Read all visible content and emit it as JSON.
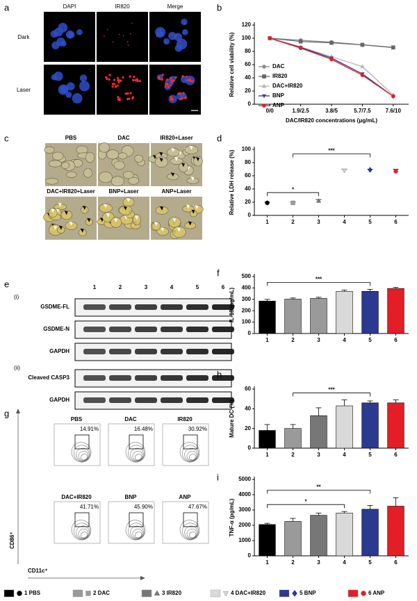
{
  "microscopy": {
    "label": "a",
    "columns": [
      "DAPI",
      "IR820",
      "Merge"
    ],
    "rows": [
      "Dark",
      "Laser"
    ]
  },
  "brightfield": {
    "label": "c",
    "images": [
      "PBS",
      "DAC",
      "IR820+Laser",
      "DAC+IR820+Laser",
      "BNP+Laser",
      "ANP+Laser"
    ]
  },
  "western_blot": {
    "label": "e",
    "lanes": [
      "1",
      "2",
      "3",
      "4",
      "5",
      "6"
    ],
    "sections": [
      {
        "label": "(i)",
        "rows": [
          "GSDME-FL",
          "GSDME-N",
          "GAPDH"
        ]
      },
      {
        "label": "(ii)",
        "rows": [
          "Cleaved CASP3",
          "GAPDH"
        ]
      }
    ]
  },
  "flow_cytometry": {
    "label": "g",
    "y_axis": "CD86⁺",
    "x_axis": "CD11c⁺",
    "plots": [
      {
        "name": "PBS",
        "percent": "14.91%"
      },
      {
        "name": "DAC",
        "percent": "16.48%"
      },
      {
        "name": "IR820",
        "percent": "30.92%"
      },
      {
        "name": "DAC+IR820",
        "percent": "41.71%"
      },
      {
        "name": "BNP",
        "percent": "45.90%"
      },
      {
        "name": "ANP",
        "percent": "47.67%"
      }
    ]
  },
  "legend": [
    {
      "label": "1 PBS",
      "color": "#000000",
      "marker": "circle"
    },
    {
      "label": "2 DAC",
      "color": "#9a9a9a",
      "marker": "square"
    },
    {
      "label": "3 IR820",
      "color": "#777777",
      "marker": "triangle"
    },
    {
      "label": "4 DAC+IR820",
      "color": "#d9d9d9",
      "marker": "down"
    },
    {
      "label": "5 BNP",
      "color": "#2b3990",
      "marker": "diamond"
    },
    {
      "label": "6 ANP",
      "color": "#e41e26",
      "marker": "circle"
    }
  ],
  "chart_data": [
    {
      "type": "line",
      "label": "b",
      "y_label": "Relative cell viability (%)",
      "x_label": "DAC/IR820 concentrations (μg/mL)",
      "categories": [
        "0/0",
        "1.9/2.5",
        "3.8/5",
        "5.7/7.5",
        "7.6/10"
      ],
      "ylim": [
        0,
        120
      ],
      "yticks": [
        0,
        20,
        40,
        60,
        80,
        100,
        120
      ],
      "series": [
        {
          "name": "DAC",
          "color": "#8c8c8c",
          "marker": "circle",
          "values": [
            100,
            97,
            94,
            90,
            86
          ]
        },
        {
          "name": "IR820",
          "color": "#666666",
          "marker": "square",
          "values": [
            100,
            95,
            93,
            90,
            86
          ]
        },
        {
          "name": "DAC+IR820",
          "color": "#b5b5b5",
          "marker": "triangle",
          "values": [
            100,
            87,
            72,
            57,
            14
          ]
        },
        {
          "name": "BNP",
          "color": "#2b3990",
          "marker": "down",
          "values": [
            100,
            86,
            70,
            46,
            12
          ]
        },
        {
          "name": "ANP",
          "color": "#e41e26",
          "marker": "circle",
          "values": [
            100,
            85,
            68,
            44,
            12
          ]
        }
      ]
    },
    {
      "type": "scatter",
      "label": "d",
      "y_label": "Relative LDH release (%)",
      "categories": [
        "1",
        "2",
        "3",
        "4",
        "5",
        "6"
      ],
      "values": [
        19,
        19,
        22,
        68,
        69,
        67
      ],
      "errors": [
        1,
        1,
        2,
        2,
        1,
        3
      ],
      "ylim": [
        0,
        100
      ],
      "yticks": [
        0,
        20,
        40,
        60,
        80,
        100
      ],
      "colors": [
        "#000000",
        "#9a9a9a",
        "#777777",
        "#d0d0d0",
        "#2b3990",
        "#e41e26"
      ],
      "markers": [
        "circle",
        "square",
        "triangle",
        "down",
        "diamond",
        "circle"
      ],
      "annotations": [
        {
          "text": "*",
          "from": "1",
          "to": "3"
        },
        {
          "text": "***",
          "from": "2",
          "to": "5"
        }
      ]
    },
    {
      "type": "bar",
      "label": "f",
      "y_label": "IL-18 (pg/mL)",
      "categories": [
        "1",
        "2",
        "3",
        "4",
        "5",
        "6"
      ],
      "values": [
        285,
        302,
        308,
        370,
        370,
        395
      ],
      "errors": [
        15,
        10,
        10,
        12,
        18,
        10
      ],
      "ylim": [
        0,
        500
      ],
      "yticks": [
        0,
        100,
        200,
        300,
        400,
        500
      ],
      "colors": [
        "#000000",
        "#9a9a9a",
        "#9a9a9a",
        "#d9d9d9",
        "#2b3990",
        "#e41e26"
      ],
      "annotations": [
        {
          "text": "***",
          "from": "1",
          "to": "5"
        }
      ]
    },
    {
      "type": "bar",
      "label": "h",
      "y_label": "Mature DC (%)",
      "categories": [
        "1",
        "2",
        "3",
        "4",
        "5",
        "6"
      ],
      "values": [
        18,
        20,
        33,
        43,
        46,
        46
      ],
      "errors": [
        6,
        4,
        8,
        6,
        2,
        3
      ],
      "ylim": [
        0,
        60
      ],
      "yticks": [
        0,
        20,
        40,
        60
      ],
      "colors": [
        "#000000",
        "#9a9a9a",
        "#777777",
        "#d9d9d9",
        "#2b3990",
        "#e41e26"
      ],
      "annotations": [
        {
          "text": "***",
          "from": "2",
          "to": "5"
        }
      ]
    },
    {
      "type": "bar",
      "label": "i",
      "y_label": "TNF-α (pg/mL)",
      "categories": [
        "1",
        "2",
        "3",
        "4",
        "5",
        "6"
      ],
      "values": [
        2050,
        2250,
        2650,
        2800,
        3050,
        3250
      ],
      "errors": [
        80,
        200,
        150,
        100,
        250,
        550
      ],
      "ylim": [
        0,
        5000
      ],
      "yticks": [
        0,
        1000,
        2000,
        3000,
        4000,
        5000
      ],
      "colors": [
        "#000000",
        "#9a9a9a",
        "#777777",
        "#d9d9d9",
        "#2b3990",
        "#e41e26"
      ],
      "annotations": [
        {
          "text": "*",
          "from": "1",
          "to": "4"
        },
        {
          "text": "**",
          "from": "1",
          "to": "5"
        }
      ]
    }
  ]
}
